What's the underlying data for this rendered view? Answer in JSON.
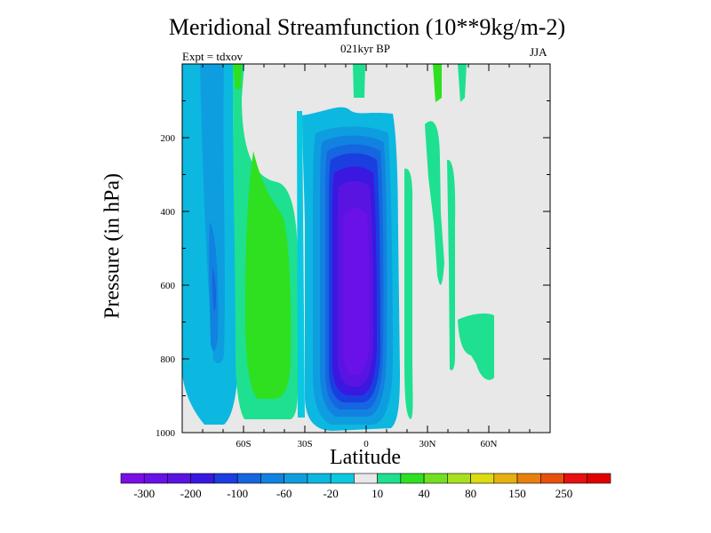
{
  "title": "Meridional Streamfunction (10**9kg/m-2)",
  "subtitle": "021kyr BP",
  "expt_label": "Expt = tdxov",
  "season": "JJA",
  "chart_data": {
    "type": "heatmap",
    "xlabel": "Latitude",
    "ylabel": "Pressure (in hPa)",
    "xlim": [
      -90,
      90
    ],
    "ylim": [
      1000,
      0
    ],
    "x_ticks": [
      {
        "value": -60,
        "label": "60S"
      },
      {
        "value": -30,
        "label": "30S"
      },
      {
        "value": 0,
        "label": "0"
      },
      {
        "value": 30,
        "label": "30N"
      },
      {
        "value": 60,
        "label": "60N"
      }
    ],
    "y_ticks": [
      {
        "value": 200,
        "label": "200"
      },
      {
        "value": 400,
        "label": "400"
      },
      {
        "value": 600,
        "label": "600"
      },
      {
        "value": 800,
        "label": "800"
      },
      {
        "value": 1000,
        "label": "1000"
      }
    ],
    "colorbar": {
      "levels": [
        -300,
        -250,
        -200,
        -150,
        -100,
        -80,
        -60,
        -40,
        -20,
        -10,
        10,
        20,
        40,
        60,
        80,
        100,
        150,
        200,
        250,
        300
      ],
      "labels": [
        "-300",
        "-200",
        "-100",
        "-60",
        "-20",
        "10",
        "40",
        "80",
        "150",
        "250"
      ],
      "colors": [
        "#7a0ee6",
        "#6a10e8",
        "#5a14e2",
        "#3a18e0",
        "#1a3ee0",
        "#1566e0",
        "#1282e0",
        "#0e9ee0",
        "#0cb8e0",
        "#0ac8e0",
        "#e8e8e8",
        "#1ee090",
        "#2ee020",
        "#72e020",
        "#a8e020",
        "#dcdc10",
        "#e8b00e",
        "#e8800e",
        "#e8500e",
        "#e81010",
        "#e00000"
      ]
    }
  }
}
